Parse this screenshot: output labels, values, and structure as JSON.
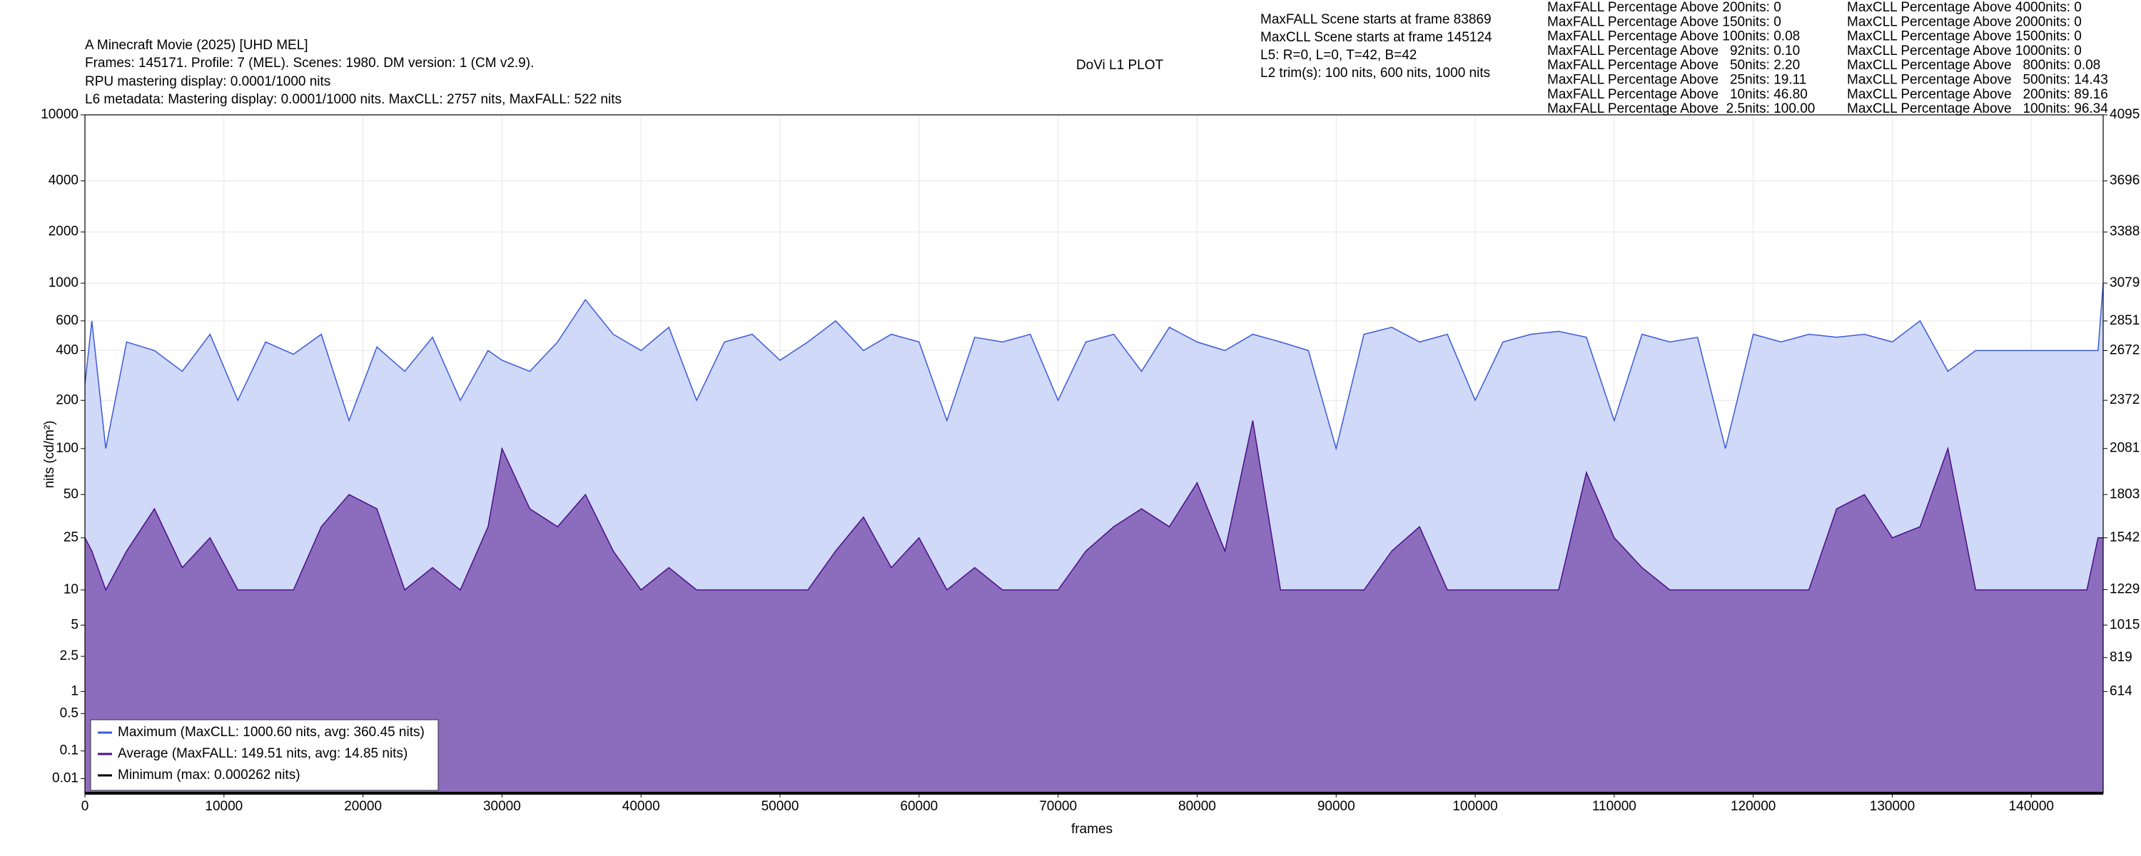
{
  "chart_data": {
    "type": "line",
    "title": "A Minecraft Movie (2025) [UHD MEL]",
    "header_lines": [
      "Frames: 145171. Profile: 7 (MEL). Scenes: 1980. DM version: 1 (CM v2.9).",
      "RPU mastering display: 0.0001/1000 nits",
      "L6 metadata: Mastering display: 0.0001/1000 nits. MaxCLL: 2757 nits, MaxFALL: 522 nits"
    ],
    "subtitle": "DoVi L1 PLOT",
    "scene_info": [
      "MaxFALL Scene starts at frame 83869",
      "MaxCLL Scene starts at frame 145124",
      "L5: R=0, L=0, T=42, B=42",
      "L2 trim(s): 100 nits, 600 nits, 1000 nits"
    ],
    "maxfall_stats": [
      "MaxFALL Percentage Above 200nits: 0",
      "MaxFALL Percentage Above 150nits: 0",
      "MaxFALL Percentage Above 100nits: 0.08",
      "MaxFALL Percentage Above   92nits: 0.10",
      "MaxFALL Percentage Above   50nits: 2.20",
      "MaxFALL Percentage Above   25nits: 19.11",
      "MaxFALL Percentage Above   10nits: 46.80",
      "MaxFALL Percentage Above  2.5nits: 100.00"
    ],
    "maxcll_stats": [
      "MaxCLL Percentage Above 4000nits: 0",
      "MaxCLL Percentage Above 2000nits: 0",
      "MaxCLL Percentage Above 1500nits: 0",
      "MaxCLL Percentage Above 1000nits: 0",
      "MaxCLL Percentage Above   800nits: 0.08",
      "MaxCLL Percentage Above   500nits: 14.43",
      "MaxCLL Percentage Above   200nits: 89.16",
      "MaxCLL Percentage Above   100nits: 96.34"
    ],
    "x_label": "frames",
    "y_label": "nits (cd/m²)",
    "y_scale": "pq",
    "grid": true,
    "legend": "lower left",
    "xlim": [
      0,
      145171
    ],
    "xticks": [
      0,
      10000,
      20000,
      30000,
      40000,
      50000,
      60000,
      70000,
      80000,
      90000,
      100000,
      110000,
      120000,
      130000,
      140000
    ],
    "ylim": [
      0,
      10000
    ],
    "yticks": [
      0.01,
      0.1,
      0.5,
      1,
      2.5,
      5,
      10,
      25,
      50,
      100,
      200,
      400,
      600,
      1000,
      2000,
      4000,
      10000
    ],
    "y2lim": [
      0,
      4095
    ],
    "y2ticks": [
      614,
      819,
      1015,
      1229,
      1542,
      1803,
      2081,
      2372,
      2672,
      2851,
      3079,
      3388,
      3696,
      4095
    ],
    "x": [
      0,
      500,
      1500,
      3000,
      5000,
      7000,
      9000,
      11000,
      13000,
      15000,
      17000,
      19000,
      21000,
      23000,
      25000,
      27000,
      29000,
      30000,
      32000,
      34000,
      36000,
      38000,
      40000,
      42000,
      44000,
      46000,
      48000,
      50000,
      52000,
      54000,
      56000,
      58000,
      60000,
      62000,
      64000,
      66000,
      68000,
      70000,
      72000,
      74000,
      76000,
      78000,
      80000,
      82000,
      84000,
      86000,
      88000,
      90000,
      92000,
      94000,
      96000,
      98000,
      100000,
      102000,
      104000,
      106000,
      108000,
      110000,
      112000,
      114000,
      116000,
      118000,
      120000,
      122000,
      124000,
      126000,
      128000,
      130000,
      132000,
      134000,
      136000,
      140000,
      144000,
      144800,
      145171
    ],
    "series": [
      {
        "name": "Maximum (MaxCLL: 1000.60 nits, avg: 360.45 nits)",
        "color": "#3b5bdb",
        "fill": "#d0d9f7",
        "values": [
          250,
          600,
          100,
          450,
          400,
          300,
          500,
          200,
          450,
          380,
          500,
          150,
          420,
          300,
          480,
          200,
          400,
          350,
          300,
          450,
          800,
          500,
          400,
          550,
          200,
          450,
          500,
          350,
          450,
          600,
          400,
          500,
          450,
          150,
          480,
          450,
          500,
          200,
          450,
          500,
          300,
          550,
          450,
          400,
          500,
          450,
          400,
          100,
          500,
          550,
          450,
          500,
          200,
          450,
          500,
          520,
          480,
          150,
          500,
          450,
          480,
          100,
          500,
          450,
          500,
          480,
          500,
          450,
          600,
          300,
          400,
          400,
          400,
          400,
          1000
        ]
      },
      {
        "name": "Average (MaxFALL: 149.51 nits, avg: 14.85 nits)",
        "color": "#4b0f8a",
        "fill": "#8c6cbd",
        "values": [
          25,
          20,
          10,
          20,
          40,
          15,
          25,
          10,
          10,
          10,
          30,
          50,
          40,
          10,
          15,
          10,
          30,
          100,
          40,
          30,
          50,
          20,
          10,
          15,
          10,
          10,
          10,
          10,
          10,
          20,
          35,
          15,
          25,
          10,
          15,
          10,
          10,
          10,
          20,
          30,
          40,
          30,
          60,
          20,
          150,
          10,
          10,
          10,
          10,
          20,
          30,
          10,
          10,
          10,
          10,
          10,
          70,
          25,
          15,
          10,
          10,
          10,
          10,
          10,
          10,
          40,
          50,
          25,
          30,
          100,
          10,
          10,
          10,
          25,
          25
        ]
      },
      {
        "name": "Minimum (max: 0.000262 nits)",
        "color": "#000000",
        "values": [
          0,
          0,
          0,
          0,
          0,
          0,
          0,
          0,
          0,
          0,
          0,
          0,
          0,
          0,
          0,
          0,
          0,
          0,
          0,
          0,
          0,
          0,
          0,
          0,
          0,
          0,
          0,
          0,
          0,
          0,
          0,
          0,
          0,
          0,
          0,
          0,
          0,
          0,
          0,
          0,
          0,
          0,
          0,
          0,
          0,
          0,
          0,
          0,
          0,
          0,
          0,
          0,
          0,
          0,
          0,
          0,
          0,
          0,
          0,
          0,
          0,
          0,
          0,
          0,
          0,
          0,
          0,
          0,
          0,
          0,
          0,
          0,
          0,
          0,
          0
        ]
      }
    ]
  }
}
